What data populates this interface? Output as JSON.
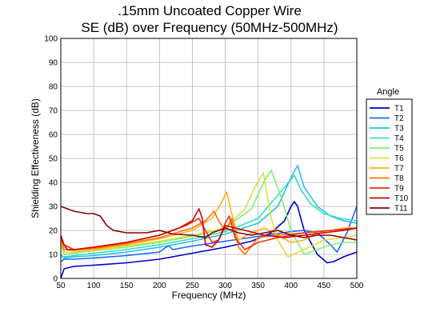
{
  "chart_data": {
    "type": "line",
    "title": ".15mm Uncoated Copper Wire",
    "subtitle": "SE (dB) over Frequency (50MHz-500MHz)",
    "xlabel": "Frequency (MHz)",
    "ylabel": "Shielding Effectiveness (dB)",
    "xlim": [
      50,
      500
    ],
    "ylim": [
      0,
      100
    ],
    "xticks": [
      50,
      100,
      150,
      200,
      250,
      300,
      350,
      400,
      450,
      500
    ],
    "yticks": [
      0,
      10,
      20,
      30,
      40,
      50,
      60,
      70,
      80,
      90,
      100
    ],
    "grid": true,
    "legend_position": "right",
    "legend_title": "Angle",
    "series": [
      {
        "name": "T1",
        "color": "#0000cc",
        "x": [
          50,
          55,
          70,
          100,
          150,
          200,
          250,
          300,
          340,
          370,
          390,
          400,
          405,
          410,
          420,
          440,
          455,
          465,
          480,
          500
        ],
        "y": [
          0,
          4,
          5,
          5.5,
          6.5,
          8,
          10.5,
          13,
          15.5,
          19,
          24,
          30,
          32,
          30,
          20,
          10,
          6.5,
          7,
          9,
          11
        ]
      },
      {
        "name": "T2",
        "color": "#1a66ff",
        "x": [
          50,
          55,
          70,
          100,
          150,
          200,
          210,
          215,
          220,
          250,
          300,
          350,
          400,
          420,
          440,
          460,
          470,
          485,
          500
        ],
        "y": [
          7,
          8,
          8,
          8.5,
          9.5,
          11,
          13,
          13.5,
          12,
          13.5,
          15.5,
          17.5,
          19.5,
          20,
          19,
          14,
          11,
          19,
          30
        ]
      },
      {
        "name": "T3",
        "color": "#22c0f0",
        "x": [
          50,
          55,
          70,
          100,
          150,
          200,
          250,
          300,
          350,
          380,
          400,
          410,
          420,
          440,
          460,
          480,
          500
        ],
        "y": [
          10,
          8.5,
          9,
          9.5,
          11,
          13,
          15.5,
          18.5,
          23,
          30,
          42,
          47,
          38,
          30,
          26,
          24,
          23
        ]
      },
      {
        "name": "T4",
        "color": "#30e0c0",
        "x": [
          50,
          55,
          70,
          100,
          150,
          200,
          250,
          300,
          350,
          390,
          405,
          415,
          430,
          450,
          475,
          500
        ],
        "y": [
          9,
          9,
          9.5,
          10.5,
          12,
          14,
          16.5,
          19.5,
          25,
          38,
          43,
          37,
          31,
          27,
          25,
          24
        ]
      },
      {
        "name": "T5",
        "color": "#80f070",
        "x": [
          50,
          55,
          70,
          100,
          150,
          200,
          250,
          300,
          340,
          360,
          370,
          385,
          400,
          420,
          440,
          460,
          480,
          500
        ],
        "y": [
          14,
          10,
          10.5,
          11.5,
          13,
          15,
          17.5,
          21,
          29,
          41,
          45,
          34,
          20,
          10,
          12,
          14,
          15,
          15
        ]
      },
      {
        "name": "T6",
        "color": "#d8e040",
        "x": [
          50,
          55,
          70,
          100,
          150,
          200,
          250,
          300,
          330,
          345,
          358,
          370,
          380,
          395,
          420,
          450,
          480,
          500
        ],
        "y": [
          15,
          11,
          11,
          11.5,
          13.5,
          15.5,
          18,
          21,
          29,
          38,
          44,
          25,
          16,
          9,
          12,
          16,
          17,
          18
        ]
      },
      {
        "name": "T7",
        "color": "#ffb020",
        "x": [
          50,
          55,
          70,
          100,
          150,
          200,
          250,
          280,
          295,
          302,
          310,
          320,
          340,
          360,
          380,
          400,
          420,
          440,
          460,
          480,
          500
        ],
        "y": [
          16,
          12,
          11.5,
          12,
          14,
          16.5,
          20,
          25,
          32,
          36,
          27,
          16,
          19,
          21,
          18,
          15,
          16,
          19,
          20,
          21,
          21
        ]
      },
      {
        "name": "T8",
        "color": "#ff7010",
        "x": [
          50,
          55,
          70,
          100,
          150,
          200,
          250,
          270,
          283,
          290,
          300,
          310,
          320,
          330,
          350,
          380,
          420,
          460,
          500
        ],
        "y": [
          17,
          12,
          12,
          12.5,
          14.5,
          17,
          21,
          24,
          28,
          24,
          20,
          25,
          13,
          10,
          17,
          18,
          19,
          20,
          21
        ]
      },
      {
        "name": "T9",
        "color": "#f03010",
        "x": [
          50,
          55,
          70,
          100,
          150,
          200,
          240,
          260,
          270,
          280,
          290,
          300,
          306,
          315,
          330,
          350,
          380,
          420,
          460,
          500
        ],
        "y": [
          17,
          14,
          12,
          13,
          15,
          18,
          22,
          25,
          20,
          15,
          16,
          23,
          26,
          17,
          12,
          15,
          17,
          19,
          20,
          21
        ]
      },
      {
        "name": "T10",
        "color": "#d00000",
        "x": [
          50,
          55,
          60,
          70,
          100,
          150,
          200,
          230,
          250,
          260,
          265,
          270,
          280,
          290,
          300,
          330,
          360,
          390,
          420,
          450,
          480,
          500
        ],
        "y": [
          18,
          14,
          12,
          12,
          13,
          15,
          18,
          21,
          24,
          29,
          25,
          14,
          13,
          16,
          22,
          20,
          18,
          17,
          18,
          19,
          20,
          21
        ]
      },
      {
        "name": "T11",
        "color": "#8b0000",
        "x": [
          50,
          60,
          70,
          80,
          90,
          100,
          110,
          120,
          130,
          150,
          180,
          200,
          220,
          250,
          270,
          280,
          300,
          320,
          340,
          360,
          380,
          400,
          420,
          440,
          460,
          480,
          500
        ],
        "y": [
          30,
          29,
          28,
          27.5,
          27,
          27,
          26,
          22,
          20,
          19,
          19,
          20,
          18.5,
          18,
          17,
          19,
          21,
          19,
          18,
          19,
          20,
          18,
          17,
          18,
          18,
          17,
          16
        ]
      }
    ]
  }
}
